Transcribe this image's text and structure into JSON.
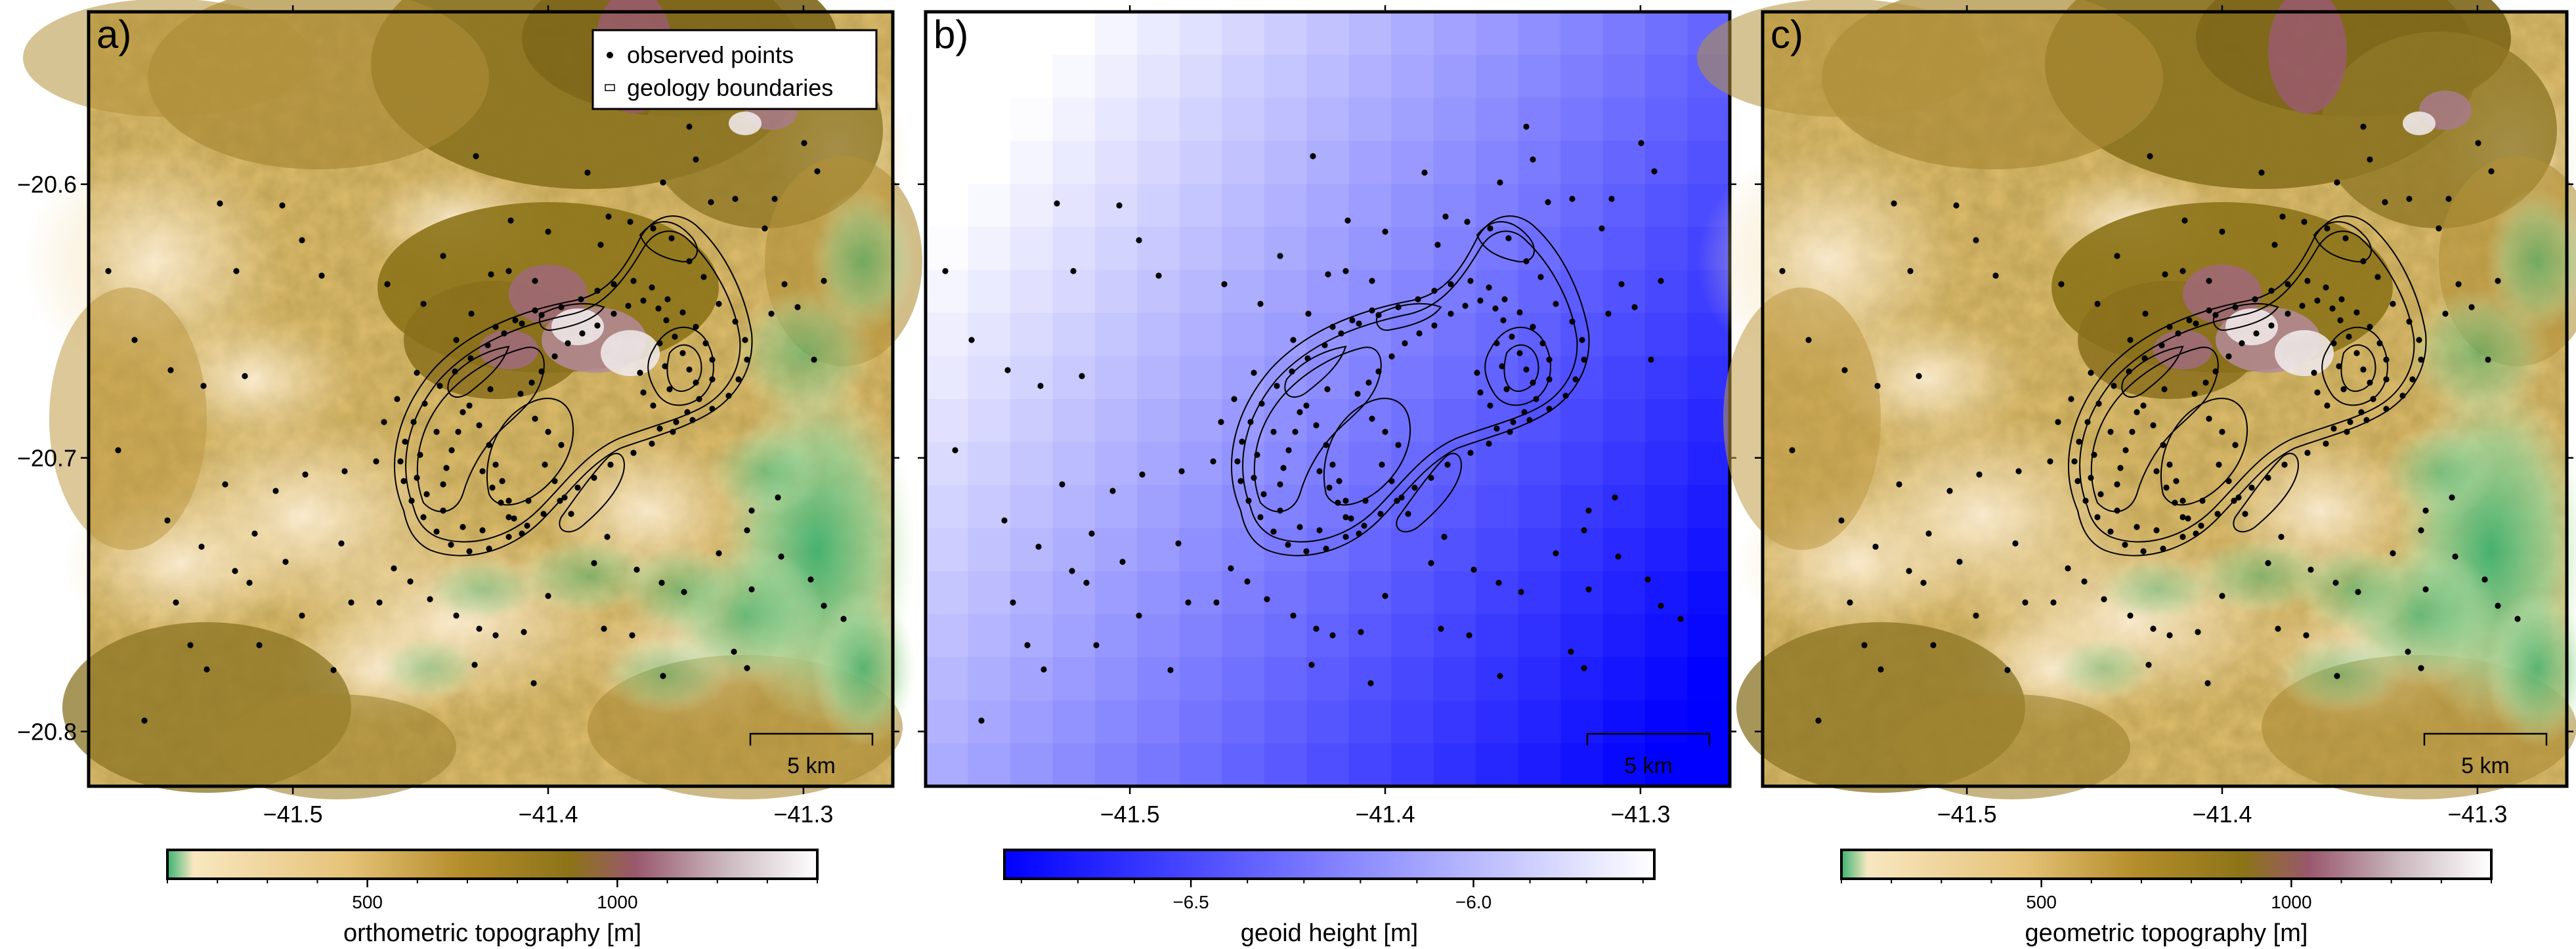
{
  "figure": {
    "panels": [
      {
        "id": "a",
        "label": "a)",
        "background": "topography",
        "colorbar_label": "orthometric topography [m]",
        "colorbar_ticks": [
          "500",
          "1000"
        ],
        "colorbar_tick_values": [
          500,
          1000
        ],
        "colorbar_range": [
          100,
          1400
        ],
        "scalebar": "5 km",
        "legend": true
      },
      {
        "id": "b",
        "label": "b)",
        "background": "geoid",
        "colorbar_label": "geoid height [m]",
        "colorbar_ticks": [
          "−6.5",
          "−6.0"
        ],
        "colorbar_tick_values": [
          -6.5,
          -6.0
        ],
        "colorbar_range": [
          -6.83,
          -5.68
        ],
        "scalebar": "5 km",
        "legend": false
      },
      {
        "id": "c",
        "label": "c)",
        "background": "topography",
        "colorbar_label": "geometric topography [m]",
        "colorbar_ticks": [
          "500",
          "1000"
        ],
        "colorbar_tick_values": [
          500,
          1000
        ],
        "colorbar_range": [
          100,
          1400
        ],
        "scalebar": "5 km",
        "legend": false
      }
    ],
    "axes": {
      "x_ticks": [
        "−41.5",
        "−41.4",
        "−41.3"
      ],
      "x_tick_values": [
        -41.5,
        -41.4,
        -41.3
      ],
      "y_ticks": [
        "−20.6",
        "−20.7",
        "−20.8"
      ],
      "y_tick_values": [
        -20.6,
        -20.7,
        -20.8
      ],
      "xlim": [
        -41.58,
        -41.265
      ],
      "ylim": [
        -20.82,
        -20.537
      ]
    },
    "legend": {
      "position": "top-right",
      "items": [
        {
          "symbol": "dot",
          "label": "observed points"
        },
        {
          "symbol": "rectangle",
          "label": "geology boundaries"
        }
      ]
    },
    "colors": {
      "topography_ramp": [
        "#3cb371",
        "#f8e7c0",
        "#e5c277",
        "#b58e2c",
        "#8c7318",
        "#99586d",
        "#cbb9bf",
        "#ffffff"
      ],
      "geoid_ramp": [
        "#0000ff",
        "#ffffff"
      ],
      "points": "#000000",
      "boundaries": "#000000"
    }
  }
}
